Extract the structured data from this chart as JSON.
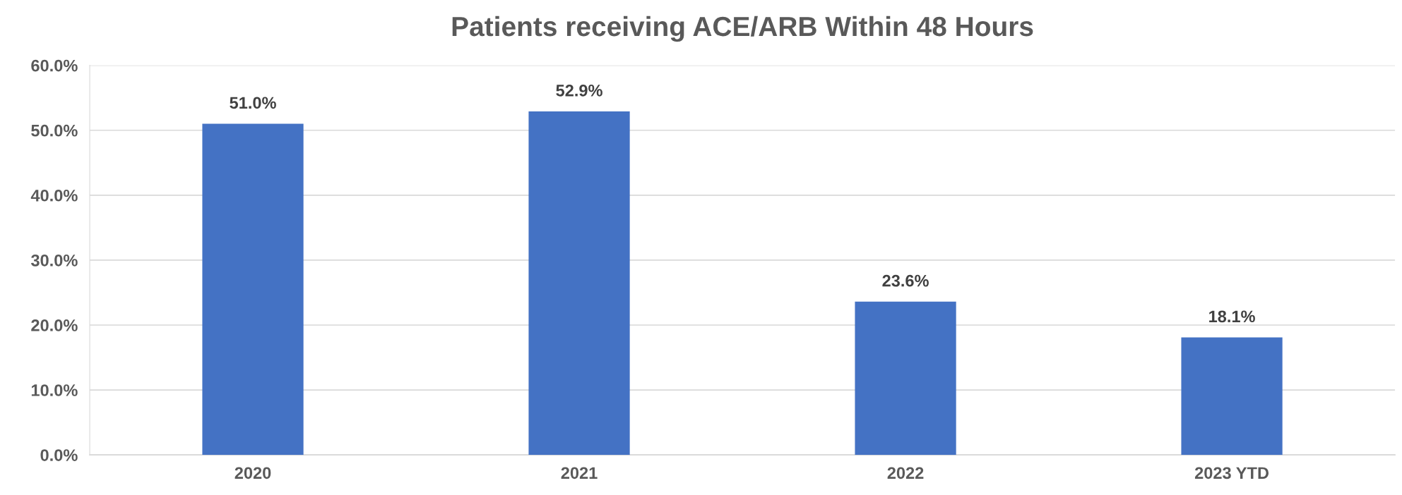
{
  "chart_data": {
    "type": "bar",
    "title": "Patients receiving ACE/ARB Within 48 Hours",
    "categories": [
      "2020",
      "2021",
      "2022",
      "2023 YTD"
    ],
    "values": [
      51.0,
      52.9,
      23.6,
      18.1
    ],
    "value_labels": [
      "51.0%",
      "52.9%",
      "23.6%",
      "18.1%"
    ],
    "color": "#4472c4",
    "ylim": [
      0,
      60
    ],
    "yticks": [
      {
        "value": 0,
        "label": "0.0%"
      },
      {
        "value": 10,
        "label": "10.0%"
      },
      {
        "value": 20,
        "label": "20.0%"
      },
      {
        "value": 30,
        "label": "30.0%"
      },
      {
        "value": 40,
        "label": "40.0%"
      },
      {
        "value": 50,
        "label": "50.0%"
      },
      {
        "value": 60,
        "label": "60.0%"
      }
    ],
    "grid": "y",
    "legend": false
  }
}
